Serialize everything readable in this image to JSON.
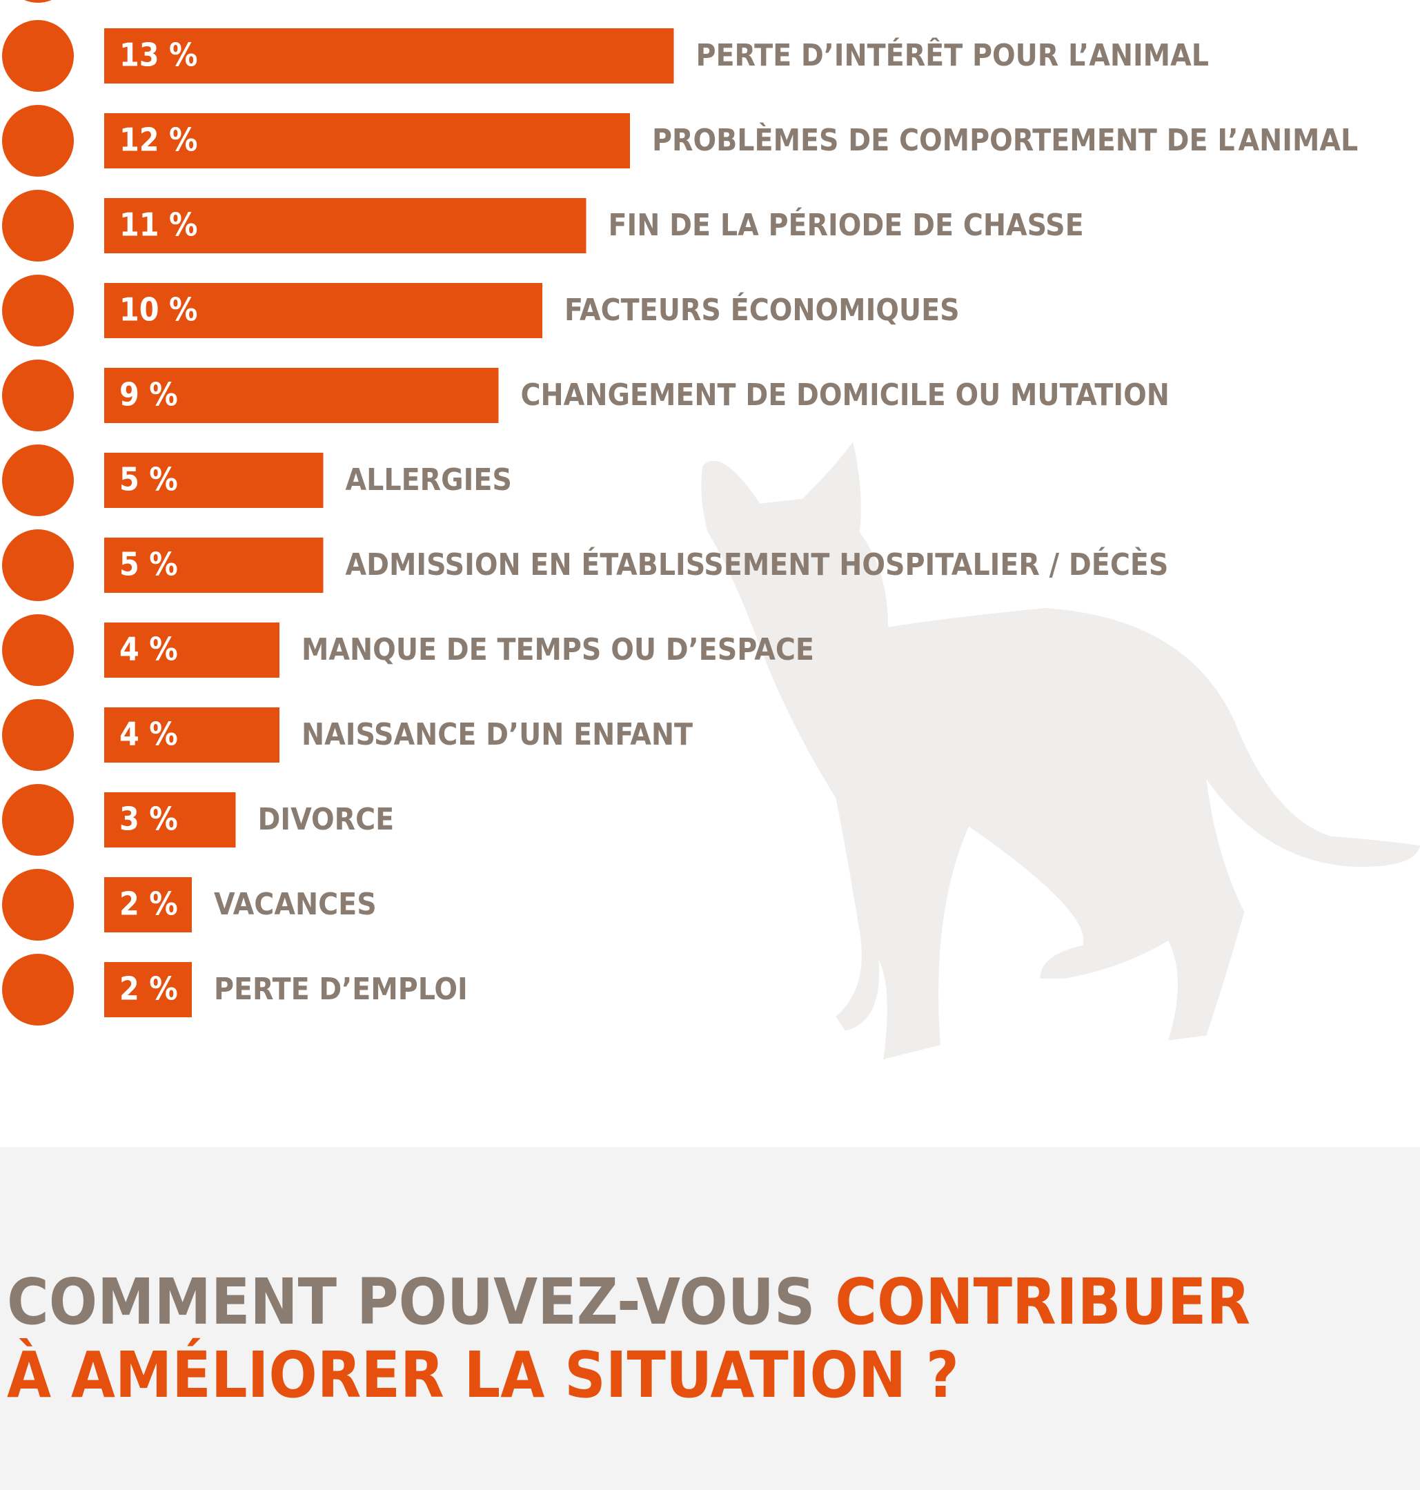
{
  "chart_data": {
    "type": "bar",
    "orientation": "horizontal",
    "color": "#e5500f",
    "categories": [
      "PERTE D’INTÉRÊT POUR L’ANIMAL",
      "PROBLÈMES DE COMPORTEMENT DE L’ANIMAL",
      "FIN DE LA PÉRIODE DE CHASSE",
      "FACTEURS ÉCONOMIQUES",
      "CHANGEMENT DE DOMICILE OU MUTATION",
      "ALLERGIES",
      "ADMISSION EN ÉTABLISSEMENT HOSPITALIER / DÉCÈS",
      "MANQUE DE TEMPS OU D’ESPACE",
      "NAISSANCE D’UN ENFANT",
      "DIVORCE",
      "VACANCES",
      "PERTE D’EMPLOI"
    ],
    "values": [
      13,
      12,
      11,
      10,
      9,
      5,
      5,
      4,
      4,
      3,
      2,
      2
    ],
    "value_labels": [
      "13 %",
      "12 %",
      "11 %",
      "10 %",
      "9 %",
      "5 %",
      "5 %",
      "4 %",
      "4 %",
      "3 %",
      "2 %",
      "2 %"
    ]
  },
  "footer": {
    "heading_gray": "COMMENT POUVEZ-VOUS",
    "heading_orange": "CONTRIBUER",
    "heading_line2": "À AMÉLIORER LA SITUATION ?"
  }
}
